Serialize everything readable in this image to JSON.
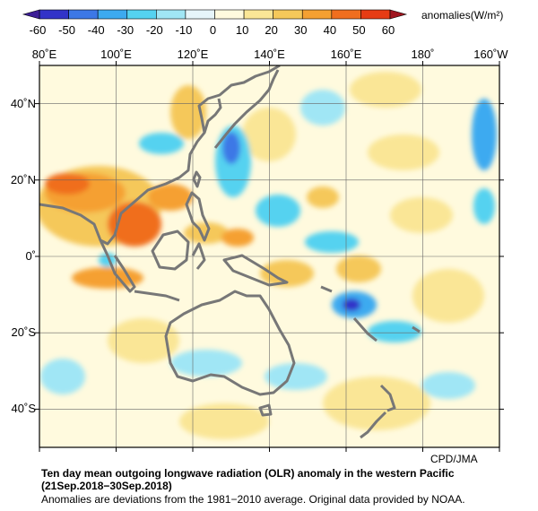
{
  "colorbar": {
    "ticks": [
      "-60",
      "-50",
      "-40",
      "-30",
      "-20",
      "-10",
      "0",
      "10",
      "20",
      "30",
      "40",
      "50",
      "60"
    ],
    "unit_label": "anomalies(W/m²)",
    "colors": [
      "#3233c8",
      "#3c78e6",
      "#3caaf0",
      "#55d2f0",
      "#a0e6f5",
      "#e6f5fa",
      "#fffade",
      "#fae696",
      "#f5c85a",
      "#f5a032",
      "#f06e1e",
      "#e63c14"
    ]
  },
  "map": {
    "lon_labels": [
      "80˚E",
      "100˚E",
      "120˚E",
      "140˚E",
      "160˚E",
      "180˚",
      "160˚W"
    ],
    "lat_labels": [
      "40˚N",
      "20˚N",
      "0˚",
      "20˚S",
      "40˚S"
    ],
    "extent": {
      "lon_min": 80,
      "lon_max": 200,
      "lat_min": -50,
      "lat_max": 50
    }
  },
  "credit": "CPD/JMA",
  "caption": {
    "title": "Ten day mean outgoing longwave radiation (OLR) anomaly in the western Pacific",
    "dates": "(21Sep.2018−30Sep.2018)",
    "note": "Anomalies are deviations from the 1981−2010 average. Original data provided by NOAA."
  }
}
